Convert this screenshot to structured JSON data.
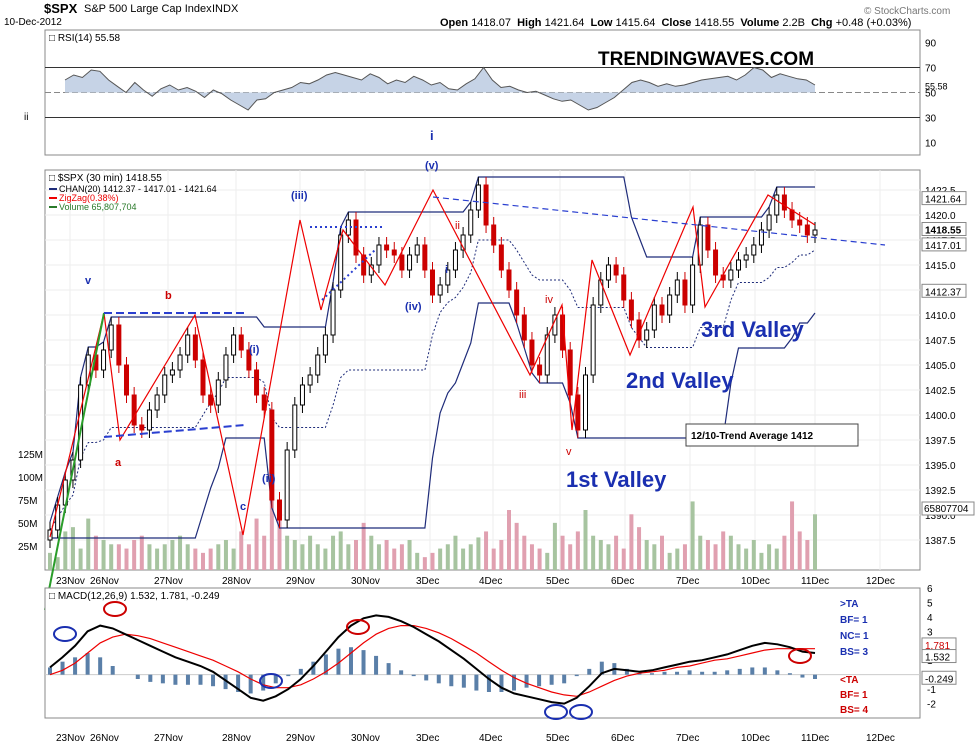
{
  "header": {
    "symbol": "$SPX",
    "name": "S&P 500 Large Cap Index",
    "exchange": "INDX",
    "date": "10-Dec-2012",
    "open_label": "Open",
    "open": "1418.07",
    "high_label": "High",
    "high": "1421.64",
    "low_label": "Low",
    "low": "1415.64",
    "close_label": "Close",
    "close": "1418.55",
    "volume_label": "Volume",
    "volume": "2.2B",
    "chg_label": "Chg",
    "chg": "+0.48 (+0.03%)",
    "watermark": "© StockCharts.com",
    "left_marker": "ii"
  },
  "chart_data": [
    {
      "type": "line",
      "panel": "rsi",
      "title": "RSI(14) 55.58",
      "ylim": [
        0,
        100
      ],
      "ticks": [
        90,
        70,
        50,
        30,
        10
      ],
      "reference_lines": [
        70,
        30
      ],
      "last_label": "55.58",
      "brand": "TRENDINGWAVES.COM",
      "top_marker": "i",
      "values": [
        60,
        64,
        62,
        68,
        67,
        60,
        55,
        50,
        58,
        52,
        47,
        53,
        56,
        52,
        54,
        51,
        46,
        52,
        49,
        44,
        40,
        36,
        44,
        45,
        50,
        52,
        54,
        58,
        57,
        60,
        64,
        66,
        64,
        62,
        60,
        65,
        62,
        57,
        60,
        58,
        63,
        60,
        56,
        58,
        53,
        52,
        57,
        61,
        70,
        60,
        54,
        55,
        52,
        50,
        51,
        48,
        45,
        43,
        44,
        40,
        36,
        38,
        42,
        46,
        52,
        58,
        60,
        58,
        55,
        57,
        55,
        56,
        58,
        60,
        61,
        62,
        63,
        60,
        64,
        70,
        68,
        62,
        65,
        63,
        61,
        60,
        56
      ]
    },
    {
      "type": "candlestick",
      "panel": "price",
      "title": "$SPX (30 min) 1418.55",
      "legend": [
        "CHAN(20) 1412.37 - 1417.01 - 1421.64",
        "ZigZag(0.38%)",
        "Volume 65,807,704"
      ],
      "ylim": [
        1385,
        1424
      ],
      "yticks": [
        1422.5,
        1420.0,
        1417.5,
        1415.0,
        1412.5,
        1410.0,
        1407.5,
        1405.0,
        1402.5,
        1400.0,
        1397.5,
        1395.0,
        1392.5,
        1390.0,
        1387.5
      ],
      "volume_ticks": [
        "125M",
        "100M",
        "75M",
        "50M",
        "25M"
      ],
      "x_labels": [
        "23Nov",
        "26Nov",
        "27Nov",
        "28Nov",
        "29Nov",
        "30Nov",
        "3Dec",
        "4Dec",
        "5Dec",
        "6Dec",
        "7Dec",
        "10Dec",
        "11Dec",
        "12Dec"
      ],
      "right_labels": [
        "1421.64",
        "1418.55",
        "1417.01",
        "1412.37",
        "65807704"
      ],
      "close": [
        1388.5,
        1391.0,
        1393.5,
        1395.5,
        1403.0,
        1406.0,
        1404.5,
        1406.5,
        1409.0,
        1405.0,
        1402.0,
        1399.0,
        1398.5,
        1400.5,
        1402.0,
        1404.0,
        1404.5,
        1406.0,
        1408.0,
        1405.5,
        1402.0,
        1401.0,
        1403.5,
        1406.0,
        1408.0,
        1406.5,
        1404.5,
        1402.0,
        1400.5,
        1391.5,
        1389.5,
        1396.5,
        1401.0,
        1403.0,
        1404.0,
        1406.0,
        1408.0,
        1412.5,
        1418.0,
        1419.5,
        1416.0,
        1414.0,
        1415.0,
        1417.0,
        1416.5,
        1416.0,
        1414.5,
        1416.0,
        1417.0,
        1414.5,
        1412.0,
        1413.0,
        1414.5,
        1416.5,
        1418.0,
        1420.5,
        1423.0,
        1419.0,
        1417.0,
        1414.5,
        1412.5,
        1410.0,
        1407.5,
        1405.0,
        1404.0,
        1408.0,
        1410.0,
        1406.5,
        1402.0,
        1398.5,
        1404.0,
        1411.0,
        1413.5,
        1415.0,
        1414.0,
        1411.5,
        1409.5,
        1407.5,
        1408.5,
        1411.0,
        1410.0,
        1412.0,
        1413.5,
        1411.0,
        1415.0,
        1419.0,
        1416.5,
        1414.0,
        1413.5,
        1414.5,
        1415.5,
        1416.0,
        1417.0,
        1418.5,
        1420.0,
        1422.0,
        1420.5,
        1419.5,
        1419.0,
        1418.0,
        1418.5
      ],
      "volume_mln": [
        20,
        15,
        45,
        50,
        25,
        60,
        40,
        35,
        30,
        30,
        25,
        35,
        40,
        30,
        25,
        30,
        35,
        40,
        30,
        25,
        20,
        25,
        30,
        35,
        25,
        45,
        30,
        60,
        40,
        105,
        70,
        40,
        35,
        30,
        40,
        30,
        25,
        40,
        45,
        30,
        35,
        55,
        40,
        30,
        35,
        25,
        30,
        35,
        20,
        15,
        20,
        25,
        30,
        40,
        25,
        30,
        38,
        45,
        25,
        35,
        70,
        55,
        40,
        30,
        25,
        20,
        55,
        40,
        30,
        45,
        70,
        40,
        35,
        30,
        40,
        25,
        65,
        50,
        35,
        30,
        40,
        20,
        25,
        30,
        80,
        40,
        35,
        30,
        45,
        40,
        30,
        25,
        35,
        20,
        30,
        25,
        40,
        80,
        45,
        35,
        65
      ],
      "channel_upper": 1421.64,
      "channel_mid": 1417.01,
      "channel_lower": 1412.37,
      "trend_note": "12/10-Trend Average 1412",
      "annotations": [
        "v",
        "b",
        "a",
        "c",
        "(i)",
        "(ii)",
        "(iii)",
        "(iv)",
        "(v)",
        "i",
        "ii",
        "iii",
        "iv",
        "v",
        "1st Valley",
        "2nd Valley",
        "3rd Valley"
      ]
    },
    {
      "type": "line",
      "panel": "macd",
      "title": "MACD(12,26,9) 1.532, 1.781, -0.249",
      "series": [
        {
          "name": "MACD",
          "values": [
            0.5,
            1.2,
            2.0,
            3.0,
            3.4,
            3.2,
            2.8,
            2.4,
            2.0,
            1.6,
            1.2,
            0.9,
            0.6,
            0.2,
            -0.4,
            -1.0,
            -1.6,
            -1.8,
            -1.5,
            -1.0,
            -0.3,
            0.6,
            1.6,
            2.6,
            3.4,
            3.9,
            4.1,
            4.0,
            3.7,
            3.3,
            2.8,
            2.3,
            1.7,
            1.1,
            0.4,
            -0.3,
            -0.9,
            -1.3,
            -1.5,
            -1.7,
            -1.9,
            -2.0,
            -1.6,
            -0.8,
            0.1,
            0.4,
            0.3,
            0.2,
            0.3,
            0.5,
            0.7,
            0.9,
            1.0,
            1.2,
            1.4,
            1.7,
            2.0,
            2.2,
            2.1,
            1.9,
            1.6,
            1.5
          ]
        },
        {
          "name": "Signal",
          "values": [
            0.0,
            0.3,
            0.8,
            1.5,
            2.2,
            2.6,
            2.8,
            2.7,
            2.5,
            2.2,
            1.9,
            1.6,
            1.3,
            1.0,
            0.6,
            0.2,
            -0.3,
            -0.7,
            -0.9,
            -0.9,
            -0.7,
            -0.3,
            0.2,
            0.8,
            1.5,
            2.2,
            2.8,
            3.2,
            3.4,
            3.4,
            3.2,
            2.9,
            2.5,
            2.0,
            1.5,
            0.9,
            0.3,
            -0.2,
            -0.6,
            -0.9,
            -1.2,
            -1.4,
            -1.5,
            -1.2,
            -0.8,
            -0.4,
            -0.1,
            0.1,
            0.2,
            0.3,
            0.5,
            0.6,
            0.8,
            1.0,
            1.1,
            1.3,
            1.5,
            1.7,
            1.8,
            1.8,
            1.8,
            1.8
          ]
        }
      ],
      "ylim": [
        -3,
        6
      ],
      "yticks": [
        6,
        5,
        4,
        3,
        2,
        1,
        0,
        -1,
        -2
      ],
      "right_labels": [
        "1.781",
        "1.532",
        "-0.249"
      ],
      "ta_buy": [
        ">TA",
        "BF= 1",
        "NC= 1",
        "BS= 3"
      ],
      "ta_sell": [
        "<TA",
        "BF= 1",
        "BS= 4"
      ]
    }
  ]
}
